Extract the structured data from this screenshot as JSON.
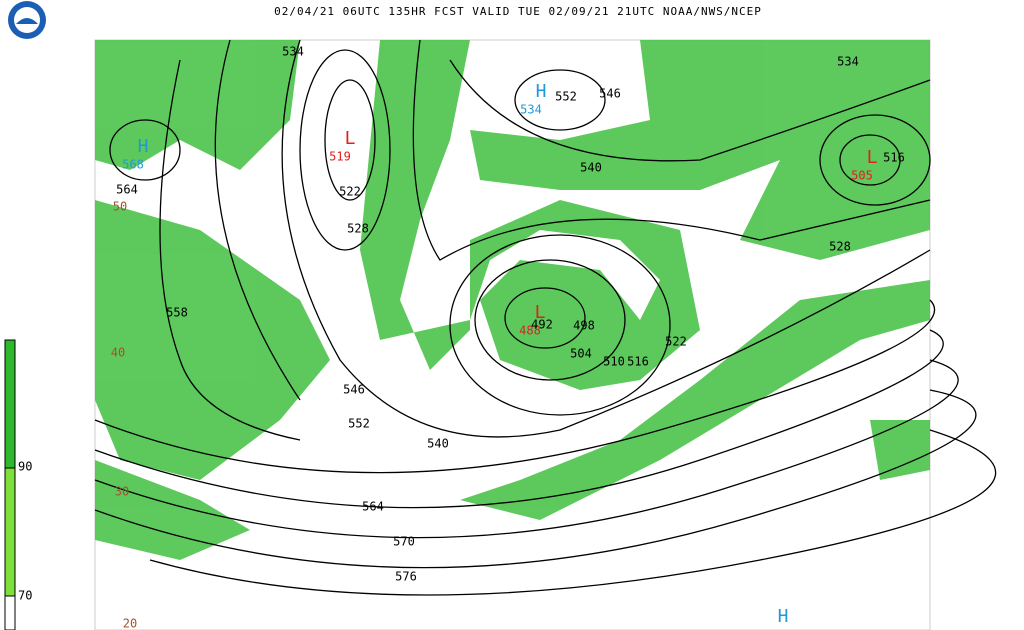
{
  "header": {
    "title": "02/04/21 06UTC 135HR FCST VALID TUE 02/09/21 21UTC NOAA/NWS/NCEP"
  },
  "legend": {
    "ticks": [
      "90",
      "70"
    ]
  },
  "map": {
    "centers": [
      {
        "symbol": "H",
        "value": "568"
      },
      {
        "symbol": "H",
        "value": "534"
      },
      {
        "symbol": "L",
        "value": "519"
      },
      {
        "symbol": "L",
        "value": "488"
      },
      {
        "symbol": "L",
        "value": "505"
      },
      {
        "symbol": "H"
      }
    ],
    "contour_labels": [
      "534",
      "534",
      "552",
      "546",
      "564",
      "522",
      "528",
      "540",
      "528",
      "516",
      "558",
      "492",
      "498",
      "504",
      "510",
      "516",
      "522",
      "546",
      "552",
      "540",
      "564",
      "570",
      "576"
    ],
    "other_labels": [
      "50",
      "40",
      "30",
      "20"
    ]
  }
}
